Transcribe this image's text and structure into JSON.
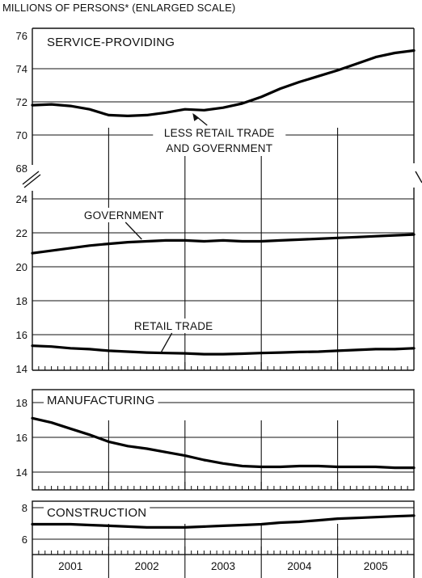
{
  "header": {
    "scale_note": "MILLIONS OF PERSONS* (ENLARGED SCALE)"
  },
  "chart_data": [
    {
      "type": "line",
      "title": "SERVICE-PROVIDING",
      "ylim": [
        68,
        76
      ],
      "yticks": [
        68,
        70,
        72,
        74,
        76
      ],
      "x_range": [
        2001.0,
        2006.0
      ],
      "grid": "horizontal",
      "series": [
        {
          "name": "LESS RETAIL TRADE AND GOVERNMENT",
          "x": [
            2001.0,
            2001.25,
            2001.5,
            2001.75,
            2002.0,
            2002.25,
            2002.5,
            2002.75,
            2003.0,
            2003.25,
            2003.5,
            2003.75,
            2004.0,
            2004.25,
            2004.5,
            2004.75,
            2005.0,
            2005.25,
            2005.5,
            2005.75,
            2006.0
          ],
          "values": [
            71.8,
            71.85,
            71.75,
            71.55,
            71.2,
            71.15,
            71.2,
            71.35,
            71.55,
            71.5,
            71.65,
            71.9,
            72.3,
            72.8,
            73.2,
            73.55,
            73.9,
            74.3,
            74.7,
            74.95,
            75.1
          ]
        }
      ],
      "annotations": [
        {
          "lines": [
            "LESS RETAIL TRADE",
            "AND GOVERNMENT"
          ],
          "x": 2003.45,
          "y": 70.35,
          "arrow_to": [
            2003.1,
            71.52
          ]
        }
      ]
    },
    {
      "type": "line",
      "ylim": [
        14,
        24
      ],
      "yticks": [
        14,
        16,
        18,
        20,
        22,
        24
      ],
      "x_range": [
        2001.0,
        2006.0
      ],
      "grid": "horizontal",
      "series": [
        {
          "name": "GOVERNMENT",
          "x": [
            2001.0,
            2001.25,
            2001.5,
            2001.75,
            2002.0,
            2002.25,
            2002.5,
            2002.75,
            2003.0,
            2003.25,
            2003.5,
            2003.75,
            2004.0,
            2004.25,
            2004.5,
            2004.75,
            2005.0,
            2005.25,
            2005.5,
            2005.75,
            2006.0
          ],
          "values": [
            20.8,
            20.95,
            21.1,
            21.25,
            21.35,
            21.45,
            21.5,
            21.55,
            21.55,
            21.5,
            21.55,
            21.5,
            21.5,
            21.55,
            21.6,
            21.65,
            21.7,
            21.75,
            21.8,
            21.85,
            21.9
          ]
        },
        {
          "name": "RETAIL TRADE",
          "x": [
            2001.0,
            2001.25,
            2001.5,
            2001.75,
            2002.0,
            2002.25,
            2002.5,
            2002.75,
            2003.0,
            2003.25,
            2003.5,
            2003.75,
            2004.0,
            2004.25,
            2004.5,
            2004.75,
            2005.0,
            2005.25,
            2005.5,
            2005.75,
            2006.0
          ],
          "values": [
            15.35,
            15.3,
            15.2,
            15.15,
            15.05,
            15.0,
            14.95,
            14.92,
            14.9,
            14.85,
            14.85,
            14.88,
            14.92,
            14.95,
            14.98,
            15.0,
            15.05,
            15.1,
            15.15,
            15.15,
            15.2
          ]
        }
      ],
      "annotations": [
        {
          "lines": [
            "GOVERNMENT"
          ],
          "x": 2002.2,
          "y": 22.5
        },
        {
          "lines": [
            "RETAIL TRADE"
          ],
          "x": 2002.85,
          "y": 16.1
        }
      ]
    },
    {
      "type": "line",
      "title": "MANUFACTURING",
      "ylim": [
        13,
        19
      ],
      "yticks": [
        14,
        16,
        18
      ],
      "x_range": [
        2001.0,
        2006.0
      ],
      "grid": "horizontal",
      "series": [
        {
          "name": "MANUFACTURING",
          "x": [
            2001.0,
            2001.25,
            2001.5,
            2001.75,
            2002.0,
            2002.25,
            2002.5,
            2002.75,
            2003.0,
            2003.25,
            2003.5,
            2003.75,
            2004.0,
            2004.25,
            2004.5,
            2004.75,
            2005.0,
            2005.25,
            2005.5,
            2005.75,
            2006.0
          ],
          "values": [
            17.1,
            16.85,
            16.5,
            16.15,
            15.75,
            15.5,
            15.35,
            15.15,
            14.95,
            14.7,
            14.5,
            14.35,
            14.3,
            14.3,
            14.35,
            14.35,
            14.3,
            14.3,
            14.3,
            14.25,
            14.25
          ]
        }
      ]
    },
    {
      "type": "line",
      "title": "CONSTRUCTION",
      "ylim": [
        5.5,
        8.5
      ],
      "yticks": [
        6,
        8
      ],
      "x_range": [
        2001.0,
        2006.0
      ],
      "grid": "horizontal",
      "series": [
        {
          "name": "CONSTRUCTION",
          "x": [
            2001.0,
            2001.25,
            2001.5,
            2001.75,
            2002.0,
            2002.25,
            2002.5,
            2002.75,
            2003.0,
            2003.25,
            2003.5,
            2003.75,
            2004.0,
            2004.25,
            2004.5,
            2004.75,
            2005.0,
            2005.25,
            2005.5,
            2005.75,
            2006.0
          ],
          "values": [
            6.95,
            6.95,
            6.95,
            6.9,
            6.85,
            6.8,
            6.75,
            6.75,
            6.75,
            6.8,
            6.85,
            6.9,
            6.95,
            7.05,
            7.1,
            7.2,
            7.3,
            7.35,
            7.4,
            7.45,
            7.5
          ]
        }
      ]
    }
  ],
  "x_axis": {
    "years": [
      "2001",
      "2002",
      "2003",
      "2004",
      "2005"
    ]
  }
}
